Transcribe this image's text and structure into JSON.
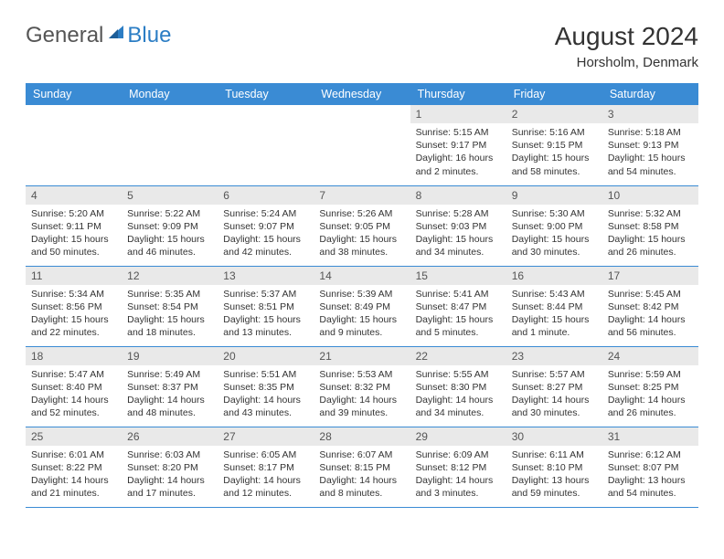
{
  "logo": {
    "part1": "General",
    "part2": "Blue"
  },
  "title": "August 2024",
  "location": "Horsholm, Denmark",
  "colors": {
    "header_bg": "#3a8bd4",
    "daynum_bg": "#e9e9e9",
    "rule": "#3a8bd4",
    "logo_blue": "#2b7dc4"
  },
  "weekdays": [
    "Sunday",
    "Monday",
    "Tuesday",
    "Wednesday",
    "Thursday",
    "Friday",
    "Saturday"
  ],
  "weeks": [
    [
      null,
      null,
      null,
      null,
      {
        "d": "1",
        "sr": "5:15 AM",
        "ss": "9:17 PM",
        "dl": "16 hours and 2 minutes."
      },
      {
        "d": "2",
        "sr": "5:16 AM",
        "ss": "9:15 PM",
        "dl": "15 hours and 58 minutes."
      },
      {
        "d": "3",
        "sr": "5:18 AM",
        "ss": "9:13 PM",
        "dl": "15 hours and 54 minutes."
      }
    ],
    [
      {
        "d": "4",
        "sr": "5:20 AM",
        "ss": "9:11 PM",
        "dl": "15 hours and 50 minutes."
      },
      {
        "d": "5",
        "sr": "5:22 AM",
        "ss": "9:09 PM",
        "dl": "15 hours and 46 minutes."
      },
      {
        "d": "6",
        "sr": "5:24 AM",
        "ss": "9:07 PM",
        "dl": "15 hours and 42 minutes."
      },
      {
        "d": "7",
        "sr": "5:26 AM",
        "ss": "9:05 PM",
        "dl": "15 hours and 38 minutes."
      },
      {
        "d": "8",
        "sr": "5:28 AM",
        "ss": "9:03 PM",
        "dl": "15 hours and 34 minutes."
      },
      {
        "d": "9",
        "sr": "5:30 AM",
        "ss": "9:00 PM",
        "dl": "15 hours and 30 minutes."
      },
      {
        "d": "10",
        "sr": "5:32 AM",
        "ss": "8:58 PM",
        "dl": "15 hours and 26 minutes."
      }
    ],
    [
      {
        "d": "11",
        "sr": "5:34 AM",
        "ss": "8:56 PM",
        "dl": "15 hours and 22 minutes."
      },
      {
        "d": "12",
        "sr": "5:35 AM",
        "ss": "8:54 PM",
        "dl": "15 hours and 18 minutes."
      },
      {
        "d": "13",
        "sr": "5:37 AM",
        "ss": "8:51 PM",
        "dl": "15 hours and 13 minutes."
      },
      {
        "d": "14",
        "sr": "5:39 AM",
        "ss": "8:49 PM",
        "dl": "15 hours and 9 minutes."
      },
      {
        "d": "15",
        "sr": "5:41 AM",
        "ss": "8:47 PM",
        "dl": "15 hours and 5 minutes."
      },
      {
        "d": "16",
        "sr": "5:43 AM",
        "ss": "8:44 PM",
        "dl": "15 hours and 1 minute."
      },
      {
        "d": "17",
        "sr": "5:45 AM",
        "ss": "8:42 PM",
        "dl": "14 hours and 56 minutes."
      }
    ],
    [
      {
        "d": "18",
        "sr": "5:47 AM",
        "ss": "8:40 PM",
        "dl": "14 hours and 52 minutes."
      },
      {
        "d": "19",
        "sr": "5:49 AM",
        "ss": "8:37 PM",
        "dl": "14 hours and 48 minutes."
      },
      {
        "d": "20",
        "sr": "5:51 AM",
        "ss": "8:35 PM",
        "dl": "14 hours and 43 minutes."
      },
      {
        "d": "21",
        "sr": "5:53 AM",
        "ss": "8:32 PM",
        "dl": "14 hours and 39 minutes."
      },
      {
        "d": "22",
        "sr": "5:55 AM",
        "ss": "8:30 PM",
        "dl": "14 hours and 34 minutes."
      },
      {
        "d": "23",
        "sr": "5:57 AM",
        "ss": "8:27 PM",
        "dl": "14 hours and 30 minutes."
      },
      {
        "d": "24",
        "sr": "5:59 AM",
        "ss": "8:25 PM",
        "dl": "14 hours and 26 minutes."
      }
    ],
    [
      {
        "d": "25",
        "sr": "6:01 AM",
        "ss": "8:22 PM",
        "dl": "14 hours and 21 minutes."
      },
      {
        "d": "26",
        "sr": "6:03 AM",
        "ss": "8:20 PM",
        "dl": "14 hours and 17 minutes."
      },
      {
        "d": "27",
        "sr": "6:05 AM",
        "ss": "8:17 PM",
        "dl": "14 hours and 12 minutes."
      },
      {
        "d": "28",
        "sr": "6:07 AM",
        "ss": "8:15 PM",
        "dl": "14 hours and 8 minutes."
      },
      {
        "d": "29",
        "sr": "6:09 AM",
        "ss": "8:12 PM",
        "dl": "14 hours and 3 minutes."
      },
      {
        "d": "30",
        "sr": "6:11 AM",
        "ss": "8:10 PM",
        "dl": "13 hours and 59 minutes."
      },
      {
        "d": "31",
        "sr": "6:12 AM",
        "ss": "8:07 PM",
        "dl": "13 hours and 54 minutes."
      }
    ]
  ],
  "labels": {
    "sunrise": "Sunrise: ",
    "sunset": "Sunset: ",
    "daylight": "Daylight: "
  }
}
